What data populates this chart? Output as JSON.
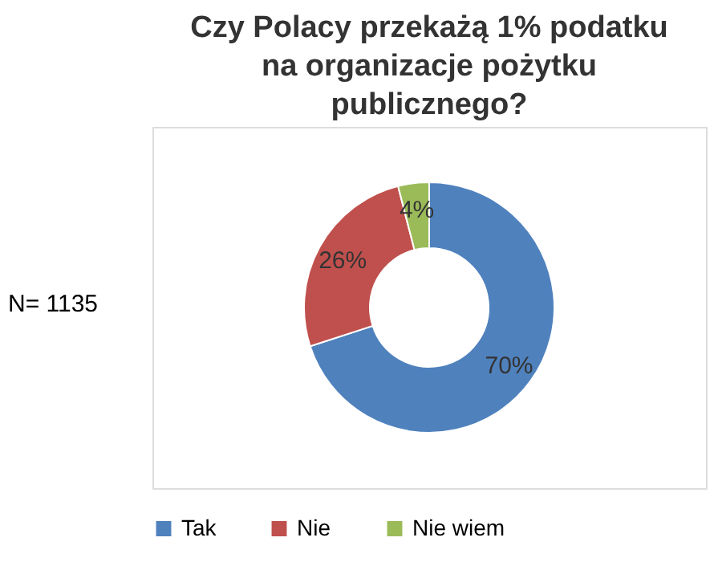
{
  "chart_data": {
    "type": "donut",
    "title": [
      "Czy Polacy przekażą 1% podatku",
      "na organizacje pożytku",
      "publicznego?"
    ],
    "categories": [
      "Tak",
      "Nie",
      "Nie wiem"
    ],
    "values": [
      70,
      26,
      4
    ],
    "colors": [
      "#4f81bd",
      "#c0504d",
      "#9bbb59"
    ],
    "value_labels": [
      "70%",
      "26%",
      "4%"
    ],
    "annotations": [
      "N= 1135"
    ],
    "legend": "bottom"
  }
}
